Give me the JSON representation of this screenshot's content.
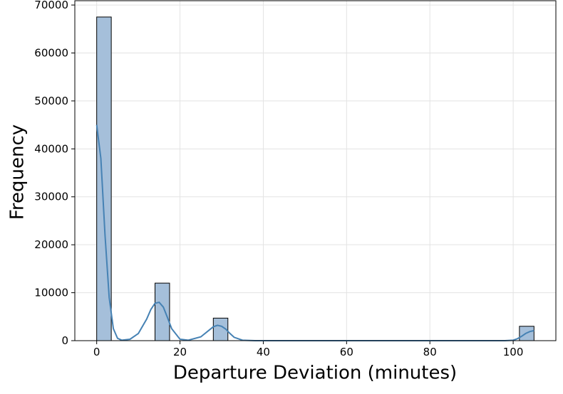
{
  "chart_data": {
    "type": "histogram",
    "xlabel": "Departure Deviation (minutes)",
    "ylabel": "Frequency",
    "bins": [
      0,
      3.5,
      7,
      10.5,
      14,
      17.5,
      21,
      24.5,
      28,
      31.5,
      35,
      38.5,
      42,
      45.5,
      49,
      52.5,
      56,
      59.5,
      63,
      66.5,
      70,
      73.5,
      77,
      80.5,
      84,
      87.5,
      91,
      94.5,
      98,
      101.5,
      105
    ],
    "counts": [
      67500,
      0,
      0,
      0,
      12000,
      0,
      0,
      0,
      4700,
      0,
      0,
      0,
      0,
      0,
      0,
      0,
      0,
      0,
      0,
      0,
      0,
      0,
      0,
      0,
      0,
      0,
      0,
      0,
      0,
      3000
    ],
    "color": "#a5bfda",
    "edgecolor": "#000000",
    "kde": {
      "color": "#4682b4",
      "x": [
        0,
        1,
        2,
        3,
        4,
        5,
        6,
        8,
        10,
        12,
        13,
        14,
        15,
        16,
        17,
        18,
        20,
        22,
        25,
        27,
        28,
        29,
        30,
        31,
        32,
        33,
        35,
        38,
        40,
        60,
        80,
        98,
        100,
        101,
        102,
        103,
        104,
        105
      ],
      "y": [
        45000,
        38000,
        22000,
        9000,
        2500,
        500,
        100,
        300,
        1500,
        4500,
        6500,
        7800,
        8000,
        7000,
        4800,
        2500,
        300,
        100,
        800,
        2200,
        2900,
        3200,
        3000,
        2400,
        1500,
        700,
        100,
        0,
        0,
        0,
        0,
        0,
        100,
        400,
        900,
        1500,
        1900,
        2100
      ]
    },
    "xlim": [
      -5.25,
      110.25
    ],
    "ylim": [
      0,
      70900
    ],
    "xticks": [
      0,
      20,
      40,
      60,
      80,
      100
    ],
    "yticks": [
      0,
      10000,
      20000,
      30000,
      40000,
      50000,
      60000,
      70000
    ],
    "grid": true
  }
}
